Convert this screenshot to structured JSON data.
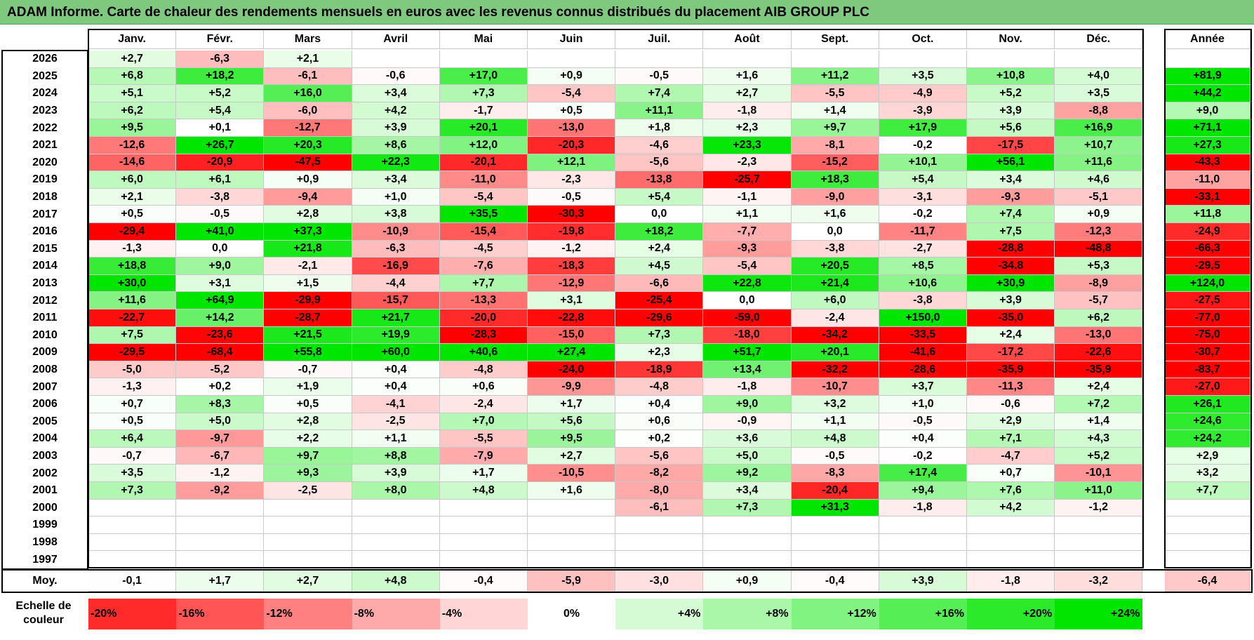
{
  "title": "ADAM Informe. Carte de chaleur des rendements mensuels en euros avec les revenus connus distribués du placement AIB GROUP PLC",
  "months": [
    "Janv.",
    "Févr.",
    "Mars",
    "Avril",
    "Mai",
    "Juin",
    "Juil.",
    "Août",
    "Sept.",
    "Oct.",
    "Nov.",
    "Déc."
  ],
  "year_col_label": "Année",
  "average_label": "Moy.",
  "scale_label": "Echelle de couleur",
  "colors": {
    "title_bg": "#7fc97f",
    "neg_max": "#ff0000",
    "pos_max": "#00e600",
    "zero": "#ffffff"
  },
  "chart_data": {
    "type": "heatmap",
    "title": "ADAM Informe. Carte de chaleur des rendements mensuels en euros avec les revenus connus distribués du placement AIB GROUP PLC",
    "columns": [
      "Janv.",
      "Févr.",
      "Mars",
      "Avril",
      "Mai",
      "Juin",
      "Juil.",
      "Août",
      "Sept.",
      "Oct.",
      "Nov.",
      "Déc.",
      "Année"
    ],
    "rows": [
      {
        "year": "2026",
        "values": [
          "+2,7",
          "-6,3",
          "+2,1",
          "",
          "",
          "",
          "",
          "",
          "",
          "",
          "",
          ""
        ],
        "annual": ""
      },
      {
        "year": "2025",
        "values": [
          "+6,8",
          "+18,2",
          "-6,1",
          "-0,6",
          "+17,0",
          "+0,9",
          "-0,5",
          "+1,6",
          "+11,2",
          "+3,5",
          "+10,8",
          "+4,0"
        ],
        "annual": "+81,9"
      },
      {
        "year": "2024",
        "values": [
          "+5,1",
          "+5,2",
          "+16,0",
          "+3,4",
          "+7,3",
          "-5,4",
          "+7,4",
          "+2,7",
          "-5,5",
          "-4,9",
          "+5,2",
          "+3,5"
        ],
        "annual": "+44,2"
      },
      {
        "year": "2023",
        "values": [
          "+6,2",
          "+5,4",
          "-6,0",
          "+4,2",
          "-1,7",
          "+0,5",
          "+11,1",
          "-1,8",
          "+1,4",
          "-3,9",
          "+3,9",
          "-8,8"
        ],
        "annual": "+9,0"
      },
      {
        "year": "2022",
        "values": [
          "+9,5",
          "+0,1",
          "-12,7",
          "+3,9",
          "+20,1",
          "-13,0",
          "+1,8",
          "+2,3",
          "+9,7",
          "+17,9",
          "+5,6",
          "+16,9"
        ],
        "annual": "+71,1"
      },
      {
        "year": "2021",
        "values": [
          "-12,6",
          "+26,7",
          "+20,3",
          "+8,6",
          "+12,0",
          "-20,3",
          "-4,6",
          "+23,3",
          "-8,1",
          "-0,2",
          "-17,5",
          "+10,7"
        ],
        "annual": "+27,3"
      },
      {
        "year": "2020",
        "values": [
          "-14,6",
          "-20,9",
          "-47,5",
          "+22,3",
          "-20,1",
          "+12,1",
          "-5,6",
          "-2,3",
          "-15,2",
          "+10,1",
          "+56,1",
          "+11,6"
        ],
        "annual": "-43,3"
      },
      {
        "year": "2019",
        "values": [
          "+6,0",
          "+6,1",
          "+0,9",
          "+3,4",
          "-11,0",
          "-2,3",
          "-13,8",
          "-25,7",
          "+18,3",
          "+5,4",
          "+3,4",
          "+4,6"
        ],
        "annual": "-11,0"
      },
      {
        "year": "2018",
        "values": [
          "+2,1",
          "-3,8",
          "-9,4",
          "+1,0",
          "-5,4",
          "-0,5",
          "+5,4",
          "-1,1",
          "-9,0",
          "-3,1",
          "-9,3",
          "-5,1"
        ],
        "annual": "-33,1"
      },
      {
        "year": "2017",
        "values": [
          "+0,5",
          "-0,5",
          "+2,8",
          "+3,8",
          "+35,5",
          "-30,3",
          "0,0",
          "+1,1",
          "+1,6",
          "-0,2",
          "+7,4",
          "+0,9"
        ],
        "annual": "+11,8"
      },
      {
        "year": "2016",
        "values": [
          "-29,4",
          "+41,0",
          "+37,3",
          "-10,9",
          "-15,4",
          "-19,8",
          "+18,2",
          "-7,7",
          "0,0",
          "-11,7",
          "+7,5",
          "-12,3"
        ],
        "annual": "-24,9"
      },
      {
        "year": "2015",
        "values": [
          "-1,3",
          "0,0",
          "+21,8",
          "-6,3",
          "-4,5",
          "-1,2",
          "+2,4",
          "-9,3",
          "-3,8",
          "-2,7",
          "-28,8",
          "-48,8"
        ],
        "annual": "-66,3"
      },
      {
        "year": "2014",
        "values": [
          "+18,8",
          "+9,0",
          "-2,1",
          "-16,9",
          "-7,6",
          "-18,3",
          "+4,5",
          "-5,4",
          "+20,5",
          "+8,5",
          "-34,8",
          "+5,3"
        ],
        "annual": "-29,5"
      },
      {
        "year": "2013",
        "values": [
          "+30,0",
          "+3,1",
          "+1,5",
          "-4,4",
          "+7,7",
          "-12,9",
          "-6,6",
          "+22,8",
          "+21,4",
          "+10,6",
          "+30,9",
          "-8,9"
        ],
        "annual": "+124,0"
      },
      {
        "year": "2012",
        "values": [
          "+11,6",
          "+64,9",
          "-29,9",
          "-15,7",
          "-13,3",
          "+3,1",
          "-25,4",
          "0,0",
          "+6,0",
          "-3,8",
          "+3,9",
          "-5,7"
        ],
        "annual": "-27,5"
      },
      {
        "year": "2011",
        "values": [
          "-22,7",
          "+14,2",
          "-28,7",
          "+21,7",
          "-20,0",
          "-22,8",
          "-29,6",
          "-59,0",
          "-2,4",
          "+150,0",
          "-35,0",
          "+6,2"
        ],
        "annual": "-77,0"
      },
      {
        "year": "2010",
        "values": [
          "+7,5",
          "-23,6",
          "+21,5",
          "+19,9",
          "-28,3",
          "-15,0",
          "+7,3",
          "-18,0",
          "-34,2",
          "-33,5",
          "+2,4",
          "-13,0"
        ],
        "annual": "-75,0"
      },
      {
        "year": "2009",
        "values": [
          "-29,5",
          "-68,4",
          "+55,8",
          "+60,0",
          "+40,6",
          "+27,4",
          "+2,3",
          "+51,7",
          "+20,1",
          "-41,6",
          "-17,2",
          "-22,6"
        ],
        "annual": "-30,7"
      },
      {
        "year": "2008",
        "values": [
          "-5,0",
          "-5,2",
          "-0,7",
          "+0,4",
          "-4,8",
          "-24,0",
          "-18,9",
          "+13,4",
          "-32,2",
          "-28,6",
          "-35,9",
          "-35,9"
        ],
        "annual": "-83,7"
      },
      {
        "year": "2007",
        "values": [
          "-1,3",
          "+0,2",
          "+1,9",
          "+0,4",
          "+0,6",
          "-9,9",
          "-4,8",
          "-1,8",
          "-10,7",
          "+3,7",
          "-11,3",
          "+2,4"
        ],
        "annual": "-27,0"
      },
      {
        "year": "2006",
        "values": [
          "+0,7",
          "+8,3",
          "+0,5",
          "-4,1",
          "-2,4",
          "+1,7",
          "+0,4",
          "+9,0",
          "+3,2",
          "+1,0",
          "-0,6",
          "+7,2"
        ],
        "annual": "+26,1"
      },
      {
        "year": "2005",
        "values": [
          "+0,5",
          "+5,0",
          "+2,8",
          "-2,5",
          "+7,0",
          "+5,6",
          "+0,6",
          "-0,9",
          "+1,1",
          "-0,5",
          "+2,9",
          "+1,4"
        ],
        "annual": "+24,6"
      },
      {
        "year": "2004",
        "values": [
          "+6,4",
          "-9,7",
          "+2,2",
          "+1,1",
          "-5,5",
          "+9,5",
          "+0,2",
          "+3,6",
          "+4,8",
          "+0,4",
          "+7,1",
          "+4,3"
        ],
        "annual": "+24,2"
      },
      {
        "year": "2003",
        "values": [
          "-0,7",
          "-6,7",
          "+9,7",
          "+8,8",
          "-7,9",
          "+2,7",
          "-5,6",
          "+5,0",
          "-0,5",
          "-0,2",
          "-4,7",
          "+5,2"
        ],
        "annual": "+2,9"
      },
      {
        "year": "2002",
        "values": [
          "+3,5",
          "-1,2",
          "+9,3",
          "+3,9",
          "+1,7",
          "-10,5",
          "-8,2",
          "+9,2",
          "-8,3",
          "+17,4",
          "+0,7",
          "-10,1"
        ],
        "annual": "+3,2"
      },
      {
        "year": "2001",
        "values": [
          "+7,3",
          "-9,2",
          "-2,5",
          "+8,0",
          "+4,8",
          "+1,6",
          "-8,0",
          "+3,4",
          "-20,4",
          "+9,4",
          "+7,6",
          "+11,0"
        ],
        "annual": "+7,7"
      },
      {
        "year": "2000",
        "values": [
          "",
          "",
          "",
          "",
          "",
          "",
          "-6,1",
          "+7,3",
          "+31,3",
          "-1,8",
          "+4,2",
          "-1,2"
        ],
        "annual": ""
      },
      {
        "year": "1999",
        "values": [
          "",
          "",
          "",
          "",
          "",
          "",
          "",
          "",
          "",
          "",
          "",
          ""
        ],
        "annual": ""
      },
      {
        "year": "1998",
        "values": [
          "",
          "",
          "",
          "",
          "",
          "",
          "",
          "",
          "",
          "",
          "",
          ""
        ],
        "annual": ""
      },
      {
        "year": "1997",
        "values": [
          "",
          "",
          "",
          "",
          "",
          "",
          "",
          "",
          "",
          "",
          "",
          ""
        ],
        "annual": ""
      }
    ],
    "averages": [
      "-0,1",
      "+1,7",
      "+2,7",
      "+4,8",
      "-0,4",
      "-5,9",
      "-3,0",
      "+0,9",
      "-0,4",
      "+3,9",
      "-1,8",
      "-3,2"
    ],
    "average_annual": "-6,4",
    "scale": [
      "-20%",
      "-16%",
      "-12%",
      "-8%",
      "-4%",
      "0%",
      "+4%",
      "+8%",
      "+12%",
      "+16%",
      "+20%",
      "+24%"
    ],
    "scale_values": [
      -20,
      -16,
      -12,
      -8,
      -4,
      0,
      4,
      8,
      12,
      16,
      20,
      24
    ]
  }
}
